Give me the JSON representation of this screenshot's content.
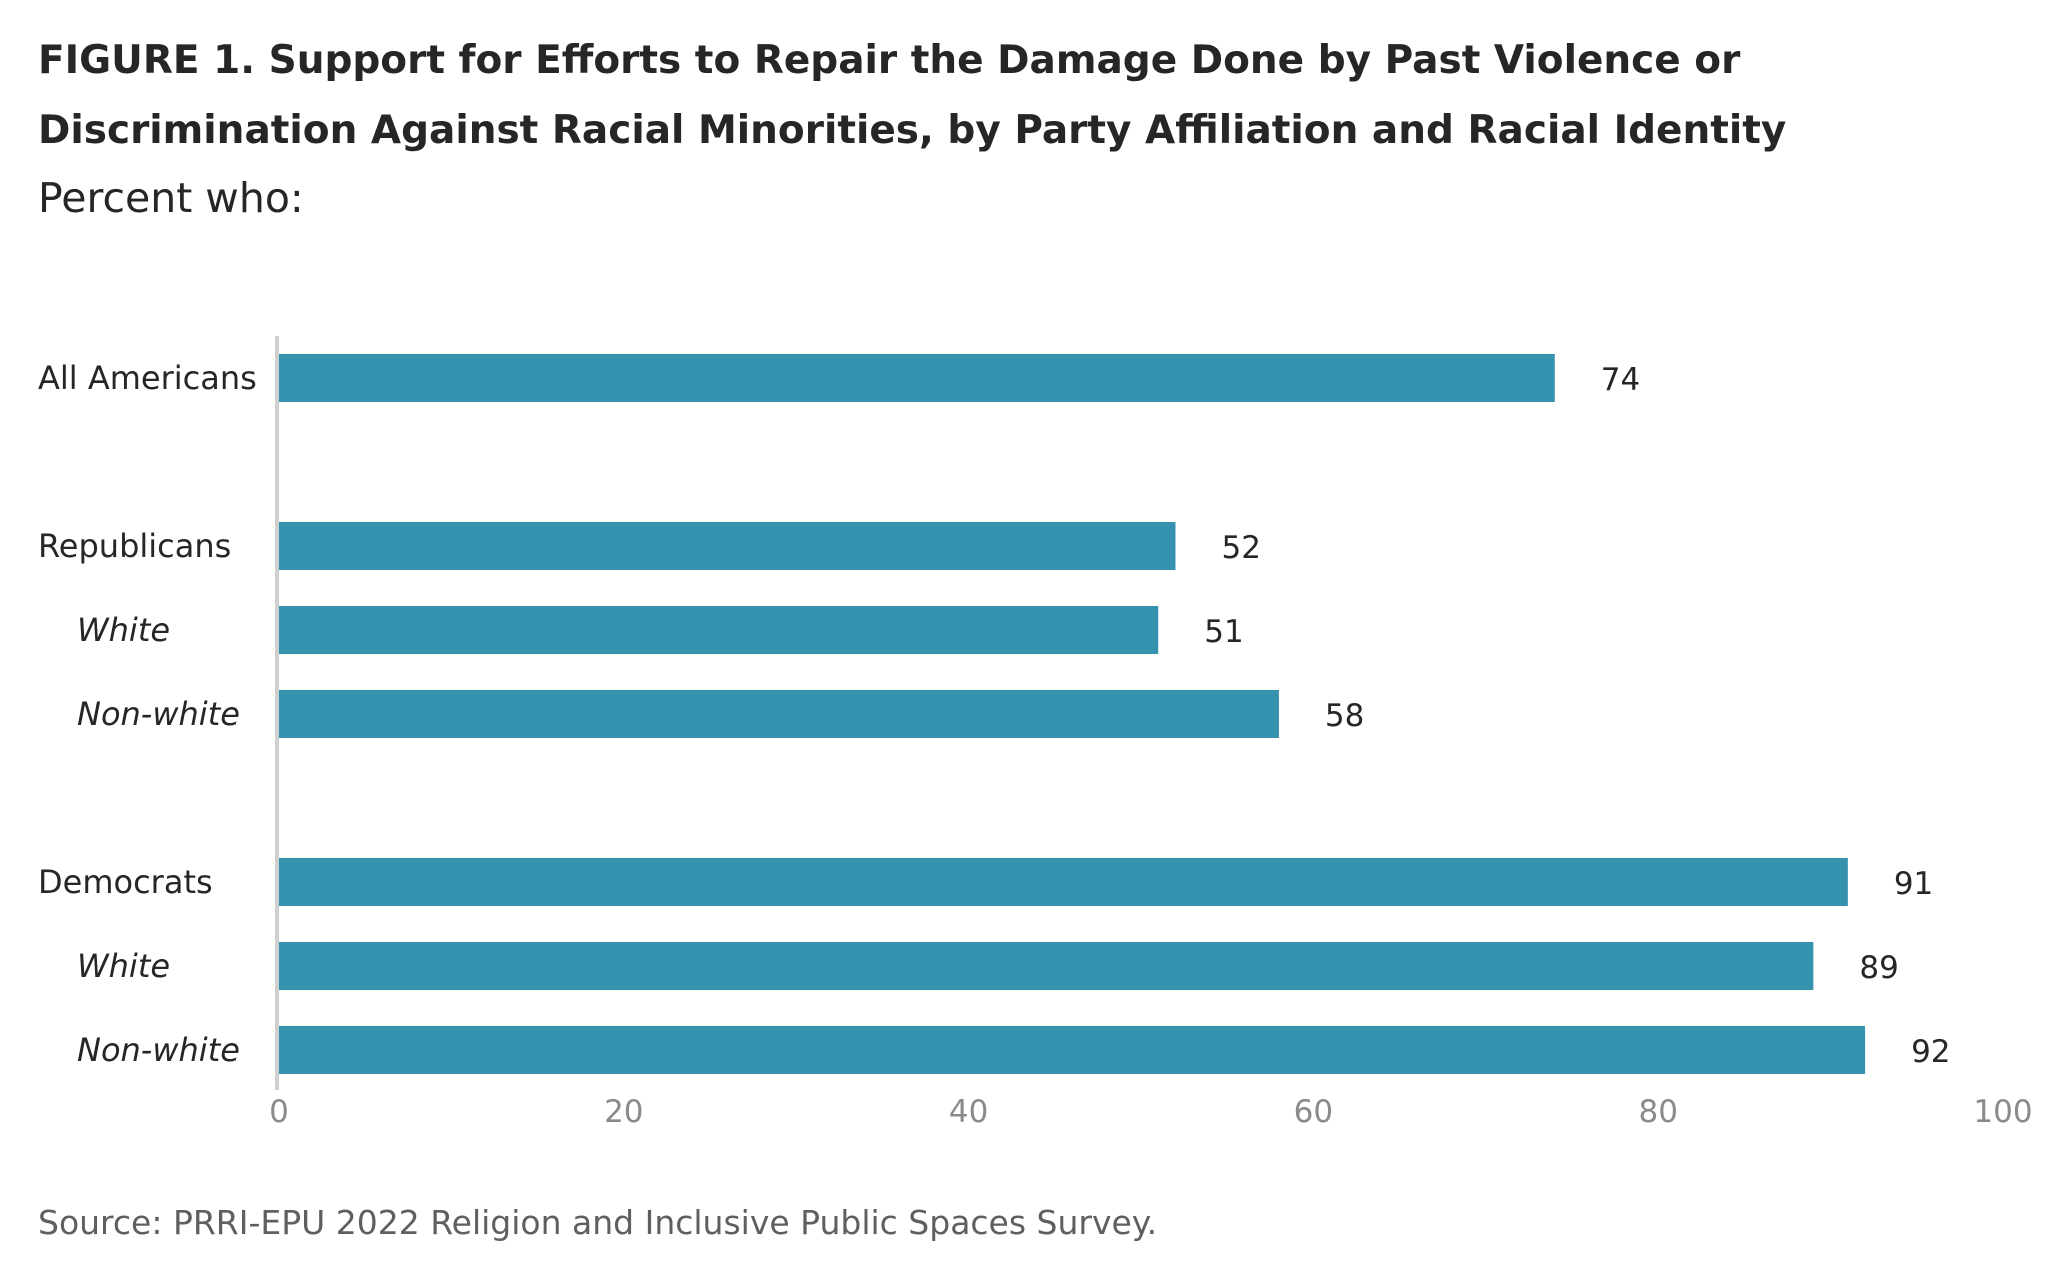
{
  "figure": {
    "title": "FIGURE 1.  Support for Efforts to Repair the Damage Done by Past Violence or Discrimination Against Racial Minorities, by Party Affiliation and Racial Identity",
    "subtitle": "Percent who:",
    "source": "Source: PRRI-EPU 2022 Religion and Inclusive Public Spaces Survey."
  },
  "colors": {
    "bar": "#3592AE",
    "axis_line": "#d0d0d0",
    "tick_text": "#8a8a8a"
  },
  "chart_data": {
    "type": "bar",
    "orientation": "horizontal",
    "title": "FIGURE 1.  Support for Efforts to Repair the Damage Done by Past Violence or Discrimination Against Racial Minorities, by Party Affiliation and Racial Identity",
    "subtitle": "Percent who:",
    "xlabel": "",
    "ylabel": "",
    "xlim": [
      0,
      100
    ],
    "xticks": [
      0,
      20,
      40,
      60,
      80,
      100
    ],
    "grid": false,
    "legend": "none",
    "categories": [
      "All Americans",
      "Republicans",
      "White",
      "Non-white",
      "Democrats",
      "White",
      "Non-white"
    ],
    "category_style": [
      "group",
      "group",
      "sub",
      "sub",
      "group",
      "sub",
      "sub"
    ],
    "values": [
      74,
      52,
      51,
      58,
      91,
      89,
      92
    ],
    "data_labels": [
      "74",
      "52",
      "51",
      "58",
      "91",
      "89",
      "92"
    ]
  }
}
